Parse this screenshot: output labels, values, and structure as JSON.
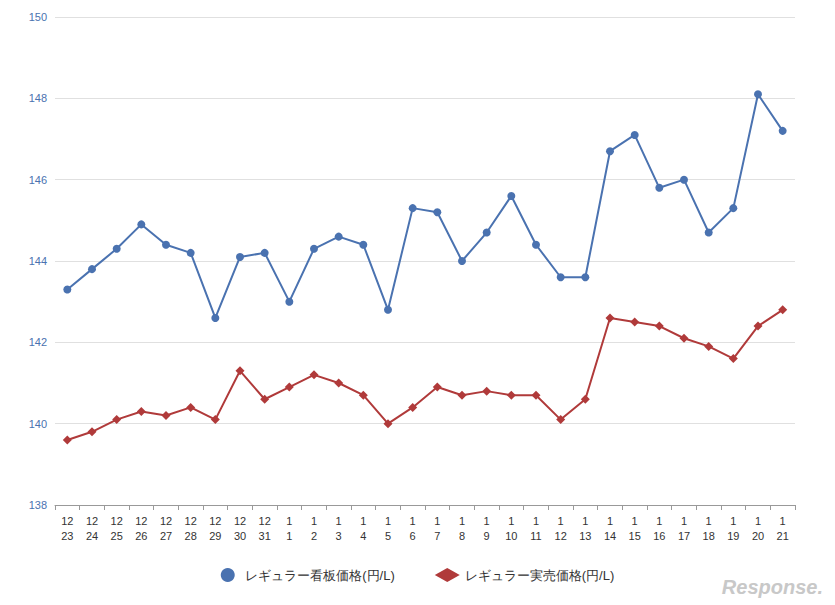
{
  "chart_data": {
    "type": "line",
    "categories": [
      "12\n23",
      "12\n24",
      "12\n25",
      "12\n26",
      "12\n27",
      "12\n28",
      "12\n29",
      "12\n30",
      "12\n31",
      "1\n1",
      "1\n2",
      "1\n3",
      "1\n4",
      "1\n5",
      "1\n6",
      "1\n7",
      "1\n8",
      "1\n9",
      "1\n10",
      "1\n11",
      "1\n12",
      "1\n13",
      "1\n14",
      "1\n15",
      "1\n16",
      "1\n17",
      "1\n18",
      "1\n19",
      "1\n20",
      "1\n21"
    ],
    "series": [
      {
        "name": "レギュラー看板価格(円/L)",
        "color": "#4a72b0",
        "marker": "circle",
        "values": [
          143.3,
          143.8,
          144.3,
          144.9,
          144.4,
          144.2,
          142.6,
          144.1,
          144.2,
          143.0,
          144.3,
          144.6,
          144.4,
          142.8,
          145.3,
          145.2,
          144.0,
          144.7,
          145.6,
          144.4,
          143.6,
          143.6,
          146.7,
          147.1,
          145.8,
          146.0,
          144.7,
          145.3,
          148.1,
          147.2
        ]
      },
      {
        "name": "レギュラー実売価格(円/L)",
        "color": "#b03a3a",
        "marker": "diamond",
        "values": [
          139.6,
          139.8,
          140.1,
          140.3,
          140.2,
          140.4,
          140.1,
          141.3,
          140.6,
          140.9,
          141.2,
          141.0,
          140.7,
          140.0,
          140.4,
          140.9,
          140.7,
          140.8,
          140.7,
          140.7,
          140.1,
          140.6,
          142.6,
          142.5,
          142.4,
          142.1,
          141.9,
          141.6,
          142.4,
          142.8
        ]
      }
    ],
    "ylim": [
      138,
      150
    ],
    "yticks": [
      138,
      140,
      142,
      144,
      146,
      148,
      150
    ],
    "grid": true,
    "legend": "bottom",
    "annotations": [
      "Response."
    ]
  }
}
